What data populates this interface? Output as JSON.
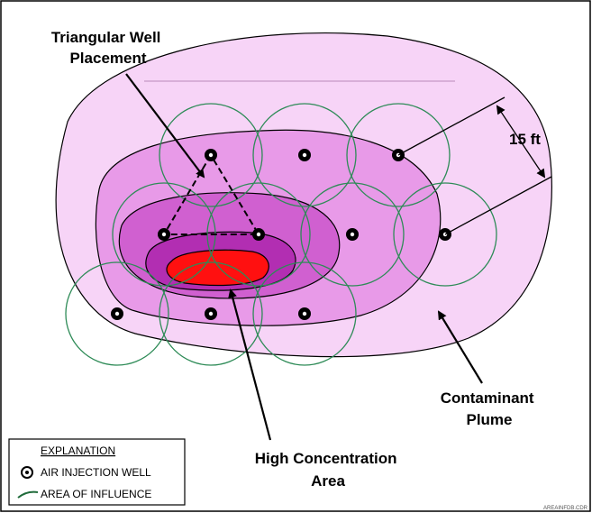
{
  "labels": {
    "well_placement": {
      "lines": [
        "Triangular Well",
        "Placement"
      ]
    },
    "spacing": "15 ft",
    "plume": {
      "lines": [
        "Contaminant",
        "Plume"
      ]
    },
    "high_concentration": {
      "lines": [
        "High Concentration",
        "Area"
      ]
    }
  },
  "legend": {
    "title": "EXPLANATION",
    "items": [
      "AIR INJECTION WELL",
      "AREA OF INFLUENCE"
    ]
  },
  "footer": "AREAINFDB.CDR"
}
